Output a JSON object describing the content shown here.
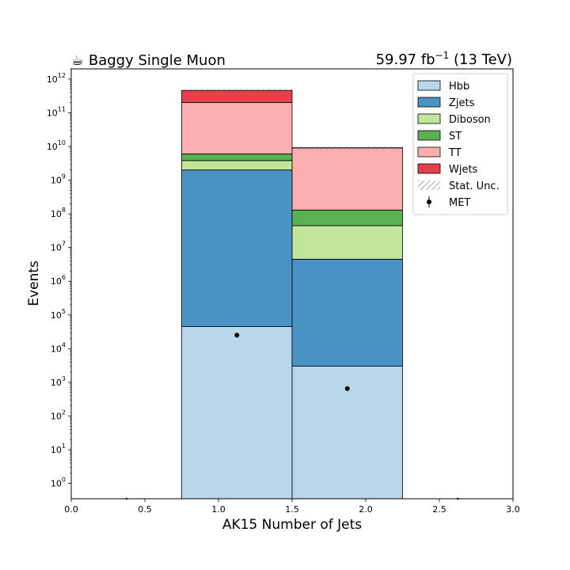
{
  "title_left": "☕ Baggy Single Muon",
  "title_right": {
    "lumi_value": "59.97 fb",
    "lumi_exp": "−1",
    "energy": " (13 TeV)"
  },
  "chart_data": {
    "type": "bar",
    "xlabel": "AK15 Number of Jets",
    "ylabel": "Events",
    "xlim": [
      0.0,
      3.0
    ],
    "ylim": [
      0.35,
      2000000000000
    ],
    "yscale": "log",
    "x_ticks": [
      "0.0",
      "0.5",
      "1.0",
      "1.5",
      "2.0",
      "2.5",
      "3.0"
    ],
    "x_tick_values": [
      0.0,
      0.5,
      1.0,
      1.5,
      2.0,
      2.5,
      3.0
    ],
    "y_tick_exponents": [
      0,
      1,
      2,
      3,
      4,
      5,
      6,
      7,
      8,
      9,
      10,
      11,
      12
    ],
    "bin_edges": [
      0.0,
      0.75,
      1.5,
      2.25,
      3.0
    ],
    "stack": [
      {
        "name": "Hbb",
        "color": "#b8d7e8",
        "values": [
          0,
          45000,
          3000,
          0
        ]
      },
      {
        "name": "Zjets",
        "color": "#4a92c4",
        "values": [
          0,
          2000000000,
          4500000,
          0
        ]
      },
      {
        "name": "Diboson",
        "color": "#c1e59b",
        "values": [
          0,
          1800000000,
          40000000,
          0
        ]
      },
      {
        "name": "ST",
        "color": "#5ab153",
        "values": [
          0,
          2200000000,
          85000000,
          0
        ]
      },
      {
        "name": "TT",
        "color": "#fbaeae",
        "values": [
          0,
          194000000000,
          8900000000,
          0
        ]
      },
      {
        "name": "Wjets",
        "color": "#e5414a",
        "values": [
          0,
          260000000000,
          100000000,
          0
        ]
      }
    ],
    "stat_unc_label": "Stat. Unc.",
    "data": {
      "name": "MET",
      "x": [
        0.375,
        1.125,
        1.875,
        2.625
      ],
      "y": [
        0,
        25000,
        650,
        0
      ]
    },
    "legend_position": "top-right"
  }
}
